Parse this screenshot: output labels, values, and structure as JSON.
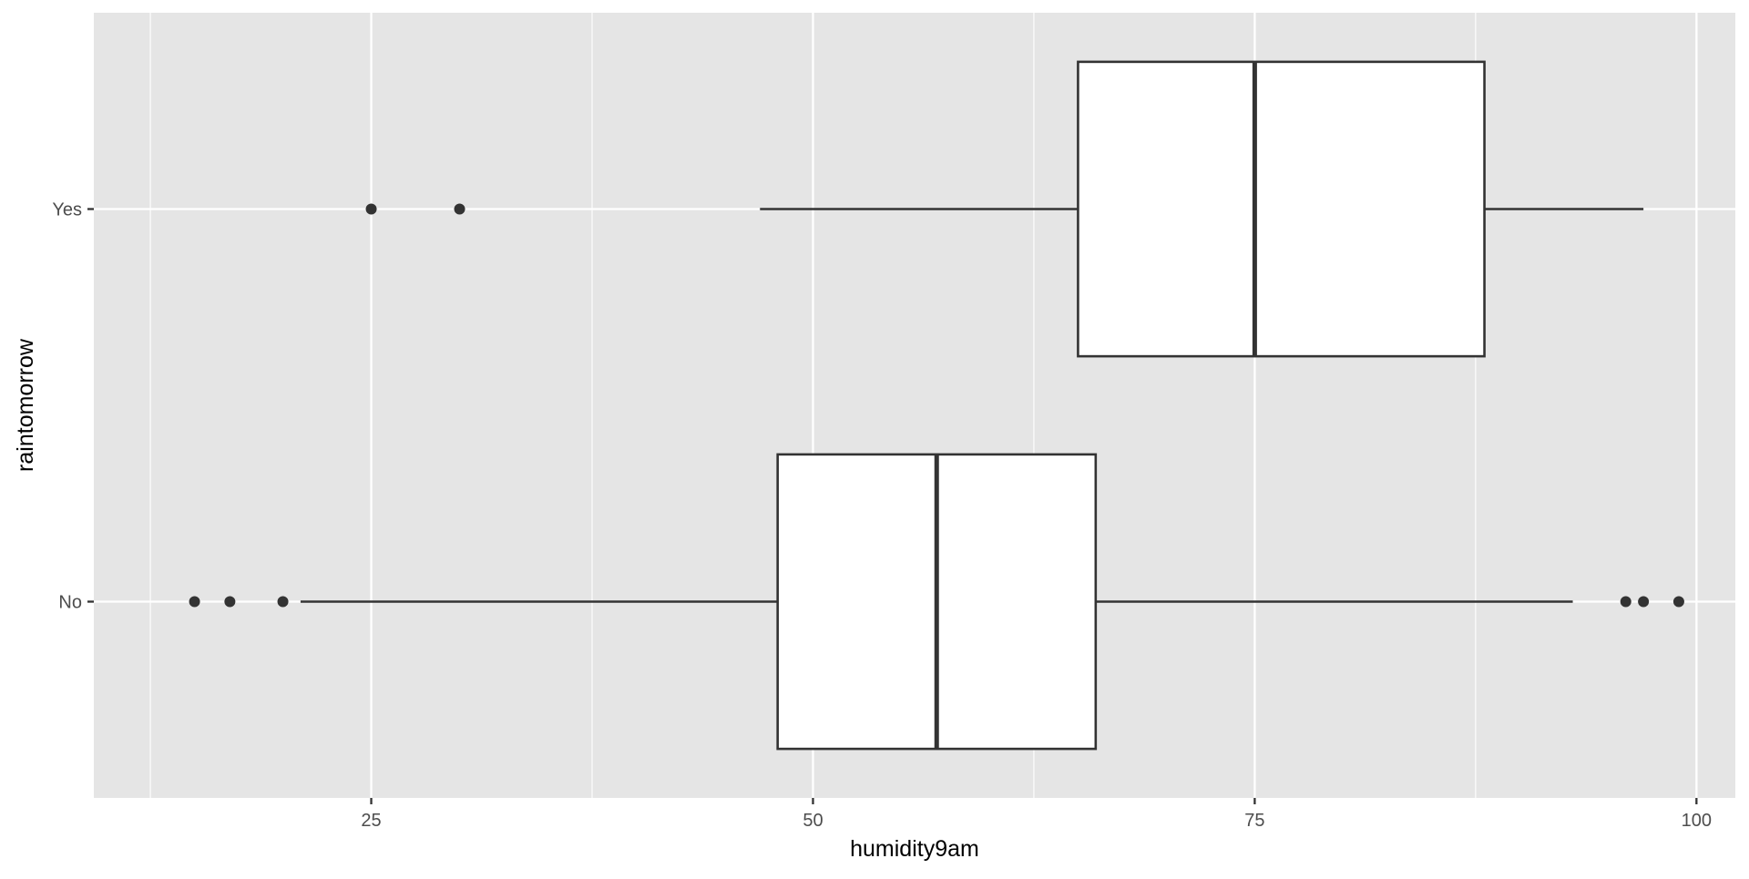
{
  "chart_data": {
    "type": "boxplot",
    "orientation": "horizontal",
    "xlabel": "humidity9am",
    "ylabel": "raintomorrow",
    "xlim": [
      9.3,
      102.2
    ],
    "x_ticks": [
      25,
      50,
      75,
      100
    ],
    "x_tick_labels": [
      "25",
      "50",
      "75",
      "100"
    ],
    "x_minor_ticks": [
      12.5,
      37.5,
      62.5,
      87.5
    ],
    "categories": [
      "No",
      "Yes"
    ],
    "grid": true,
    "legend": "none",
    "colors": {
      "panel_background": "#e5e5e5",
      "grid": "#ffffff",
      "box_fill": "#ffffff",
      "box_line": "#333333",
      "outlier": "#333333",
      "tick_text": "#4d4d4d"
    },
    "boxes": [
      {
        "category": "No",
        "whisker_low": 21,
        "q1": 48,
        "median": 57,
        "q3": 66,
        "whisker_high": 93,
        "outliers": [
          15,
          17,
          20,
          96,
          97,
          99
        ]
      },
      {
        "category": "Yes",
        "whisker_low": 47,
        "q1": 65,
        "median": 75,
        "q3": 88,
        "whisker_high": 97,
        "outliers": [
          25,
          30
        ]
      }
    ]
  }
}
